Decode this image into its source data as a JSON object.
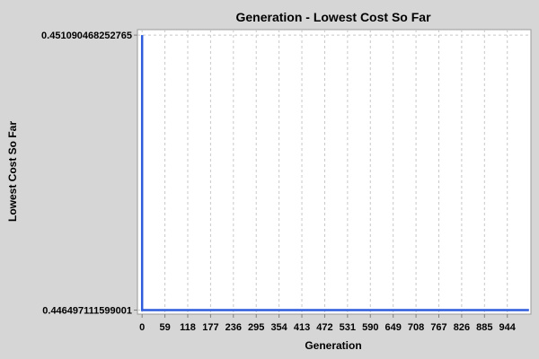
{
  "chart_data": {
    "type": "line",
    "title": "Generation - Lowest Cost So Far",
    "xlabel": "Generation",
    "ylabel": "Lowest Cost So Far",
    "x_ticks": [
      0,
      59,
      118,
      177,
      236,
      295,
      354,
      413,
      472,
      531,
      590,
      649,
      708,
      767,
      826,
      885,
      944
    ],
    "y_ticks": [
      "0.446497111599001",
      "0.451090468252765"
    ],
    "xlim": [
      -12,
      1005
    ],
    "ylim": [
      0.44643,
      0.451182
    ],
    "grid": true,
    "legend": "none",
    "series": [
      {
        "color": "#2f5cdc",
        "x": [
          0,
          0,
          1,
          1000
        ],
        "y": [
          0.451090468252765,
          0.446497111599001,
          0.446497111599001,
          0.446497111599001
        ]
      }
    ]
  },
  "colors": {
    "background": "#d6d6d6",
    "plot_area": "#ffffff",
    "grid": "#c8c8c8",
    "line": "#2f5cdc"
  }
}
